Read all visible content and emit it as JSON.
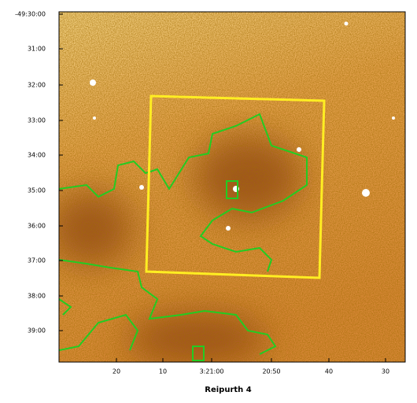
{
  "figure": {
    "title": "Reipurth 4",
    "yticks": [
      "-49:30:00",
      "31:00",
      "32:00",
      "33:00",
      "34:00",
      "35:00",
      "36:00",
      "37:00",
      "38:00",
      "39:00"
    ],
    "xticks": [
      "20",
      "10",
      "3:21:00",
      "20:50",
      "40",
      "30"
    ]
  }
}
